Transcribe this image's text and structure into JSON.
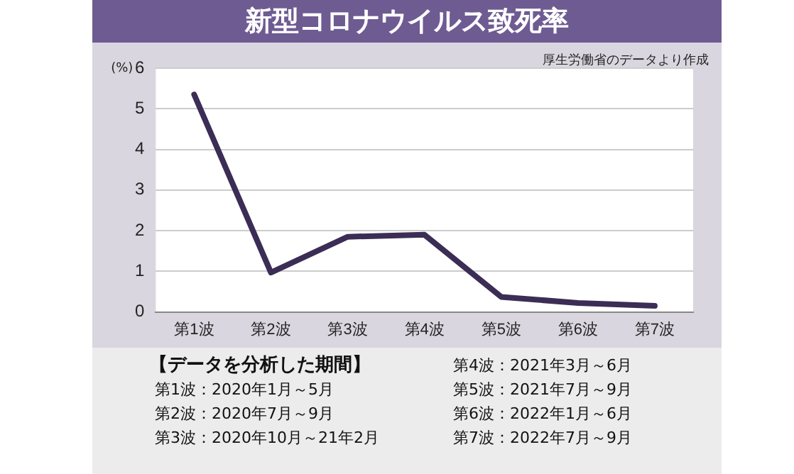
{
  "chart_data": {
    "type": "line",
    "title": "新型コロナウイルス致死率",
    "ylabel": "(%)",
    "categories": [
      "第1波",
      "第2波",
      "第3波",
      "第4波",
      "第5波",
      "第6波",
      "第7波"
    ],
    "series": [
      {
        "color": "#3b2d55",
        "values": [
          5.35,
          0.97,
          1.85,
          1.9,
          0.37,
          0.22,
          0.15
        ]
      }
    ],
    "ylim": [
      0,
      6
    ],
    "yticks": [
      0,
      1,
      2,
      3,
      4,
      5,
      6
    ],
    "grid": "y",
    "legend": false,
    "marker": "none",
    "line_style": "solid",
    "annotations": [
      "厚生労働省のデータより作成",
      "【データを分析した期間】",
      "第1波：2020年1月～5月",
      "第2波：2020年7月～9月",
      "第3波：2020年10月～21年2月",
      "第4波：2021年3月～6月",
      "第5波：2021年7月～9月",
      "第6波：2022年1月～6月",
      "第7波：2022年7月～9月"
    ]
  }
}
